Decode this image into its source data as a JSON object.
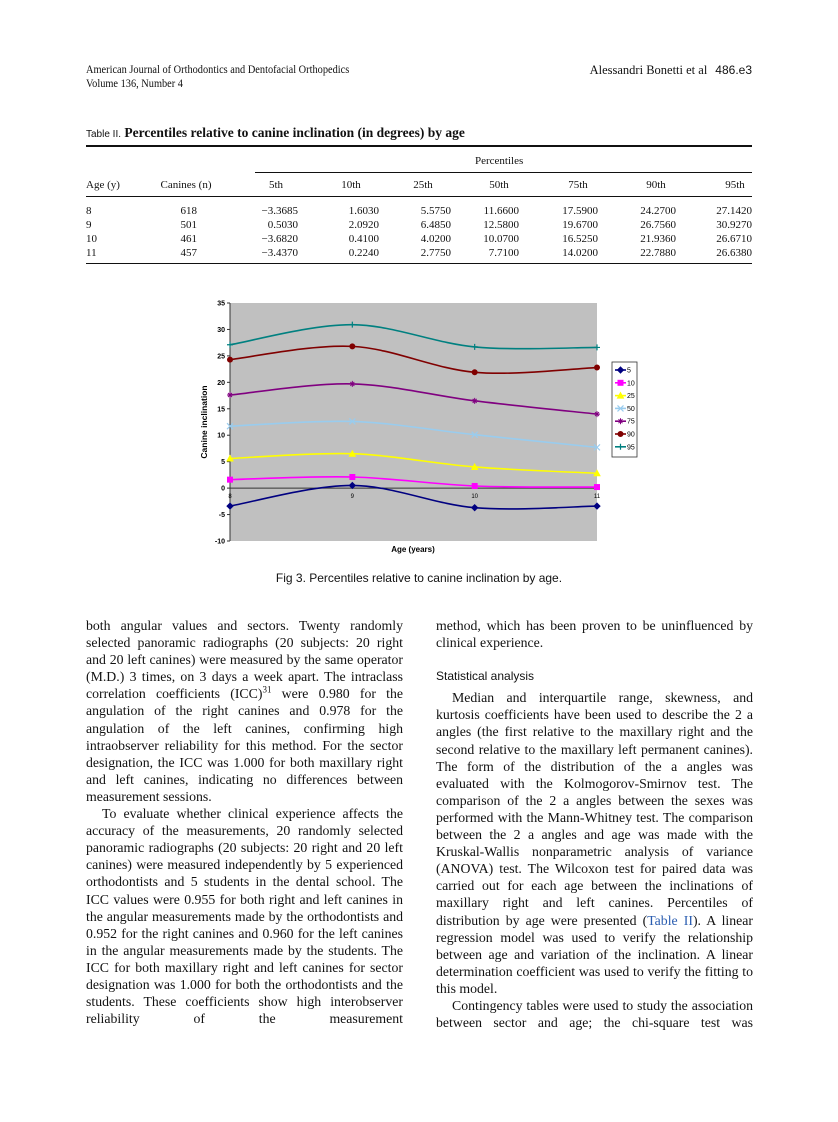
{
  "header": {
    "journal": "American Journal of Orthodontics and Dentofacial Orthopedics",
    "volume": "Volume 136, Number 4",
    "authors": "Alessandri Bonetti et al",
    "page": "486.e3"
  },
  "table": {
    "label": "Table II.",
    "title": "Percentiles relative to canine inclination (in degrees) by age",
    "group_header": "Percentiles",
    "columns": [
      "Age (y)",
      "Canines (n)",
      "5th",
      "10th",
      "25th",
      "50th",
      "75th",
      "90th",
      "95th"
    ],
    "rows": [
      [
        "8",
        "618",
        "−3.3685",
        "1.6030",
        "5.5750",
        "11.6600",
        "17.5900",
        "24.2700",
        "27.1420"
      ],
      [
        "9",
        "501",
        "0.5030",
        "2.0920",
        "6.4850",
        "12.5800",
        "19.6700",
        "26.7560",
        "30.9270"
      ],
      [
        "10",
        "461",
        "−3.6820",
        "0.4100",
        "4.0200",
        "10.0700",
        "16.5250",
        "21.9360",
        "26.6710"
      ],
      [
        "11",
        "457",
        "−3.4370",
        "0.2240",
        "2.7750",
        "7.7100",
        "14.0200",
        "22.7880",
        "26.6380"
      ]
    ]
  },
  "chart_data": {
    "type": "line",
    "y_label": "Canine inclination",
    "x_label": "Age (years)",
    "categories": [
      "8",
      "9",
      "10",
      "11"
    ],
    "ylim": [
      -10,
      35
    ],
    "yticks": [
      -10,
      -5,
      0,
      5,
      10,
      15,
      20,
      25,
      30,
      35
    ],
    "grid": false,
    "plot_background": "#c0c0c0",
    "legend": "right",
    "series": [
      {
        "name": "5",
        "color": "#000080",
        "marker": "diamond",
        "values": [
          -3.4,
          0.5,
          -3.7,
          -3.4
        ]
      },
      {
        "name": "10",
        "color": "#ff00ff",
        "marker": "square",
        "values": [
          1.6,
          2.1,
          0.4,
          0.2
        ]
      },
      {
        "name": "25",
        "color": "#ffff00",
        "marker": "triangle",
        "values": [
          5.6,
          6.5,
          4.0,
          2.8
        ]
      },
      {
        "name": "50",
        "color": "#99ccee",
        "marker": "x",
        "values": [
          11.7,
          12.6,
          10.1,
          7.7
        ]
      },
      {
        "name": "75",
        "color": "#800080",
        "marker": "star",
        "values": [
          17.6,
          19.7,
          16.5,
          14.0
        ]
      },
      {
        "name": "90",
        "color": "#800000",
        "marker": "circle",
        "values": [
          24.3,
          26.8,
          21.9,
          22.8
        ]
      },
      {
        "name": "95",
        "color": "#008080",
        "marker": "plus",
        "values": [
          27.1,
          30.9,
          26.7,
          26.6
        ]
      }
    ]
  },
  "figure_caption": "Fig 3. Percentiles relative to canine inclination by age.",
  "body": {
    "left": {
      "p1": [
        "both angular values and sectors. Twenty randomly selected panoramic radiographs (20 subjects: 20 right and 20 left canines) were measured by the same operator (M.D.) 3 times, on 3 days a week apart. The intraclass correlation coefficients (ICC)",
        "31",
        " were 0.980 for the angulation of the right canines and 0.978 for the angulation of the left canines, confirming high intraobserver reliability for this method. For the sector designation, the ICC was 1.000 for both maxillary right and left canines, indicating no differences between measurement sessions."
      ],
      "p2": "To evaluate whether clinical experience affects the accuracy of the measurements, 20 randomly selected panoramic radiographs (20 subjects: 20 right and 20 left canines) were measured independently by 5 experienced orthodontists and 5 students in the dental school. The ICC values were 0.955 for both right and left canines in the angular measurements made by the orthodontists and 0.952 for the right canines and 0.960 for the left canines in the angular measurements made by the students. The ICC for both maxillary right and left canines for sector designation was 1.000 for both the orthodontists and the students. These coefficients show high interobserver reliability of the measurement"
    },
    "right": {
      "p1": "method, which has been proven to be uninfluenced by clinical experience.",
      "heading": "Statistical analysis",
      "p2": [
        "Median and interquartile range, skewness, and kurtosis coefficients have been used to describe the 2 a angles (the first relative to the maxillary right and the second relative to the maxillary left permanent canines). The form of the distribution of the a angles was evaluated with the Kolmogorov-Smirnov test. The comparison of the 2 a angles between the sexes was performed with the Mann-Whitney test. The comparison between the 2 a angles and age was made with the Kruskal-Wallis nonparametric analysis of variance (ANOVA) test. The Wilcoxon test for paired data was carried out for each age between the inclinations of maxillary right and left canines. Percentiles of distribution by age were presented (",
        "Table II",
        "). A linear regression model was used to verify the relationship between age and variation of the inclination. A linear determination coefficient was used to verify the fitting to this model."
      ],
      "p3": "Contingency tables were used to study the association between sector and age; the chi-square test was"
    }
  }
}
